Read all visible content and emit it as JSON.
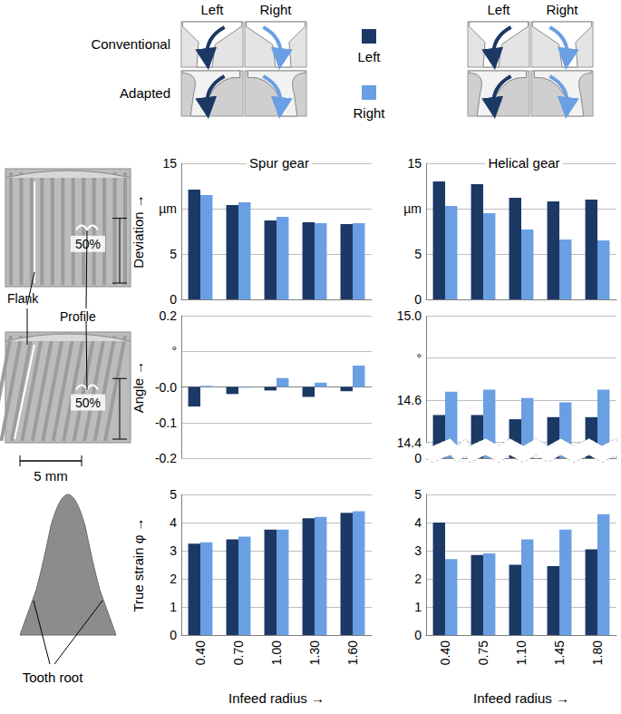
{
  "chart_data": [
    {
      "type": "bar",
      "title": "Spur gear",
      "ylabel": "Deviation →",
      "categories": [
        "0.40",
        "0.70",
        "1.00",
        "1.30",
        "1.60"
      ],
      "series": [
        {
          "name": "Left",
          "color": "#1c3865",
          "values": [
            12.1,
            10.4,
            8.7,
            8.5,
            8.3
          ]
        },
        {
          "name": "Right",
          "color": "#6a9fe3",
          "values": [
            11.5,
            10.7,
            9.1,
            8.4,
            8.4
          ]
        }
      ],
      "ylim": [
        0,
        15
      ],
      "yticks": [
        0,
        5,
        {
          "value": 10,
          "label": "µm"
        },
        15
      ],
      "grid": true,
      "tick_labels": "y"
    },
    {
      "type": "bar",
      "title": "Helical gear",
      "categories": [
        "0.40",
        "0.75",
        "1.10",
        "1.45",
        "1.80"
      ],
      "series": [
        {
          "name": "Left",
          "color": "#1c3865",
          "values": [
            13.0,
            12.7,
            11.2,
            10.8,
            11.0
          ]
        },
        {
          "name": "Right",
          "color": "#6a9fe3",
          "values": [
            10.3,
            9.5,
            7.7,
            6.6,
            6.5
          ]
        }
      ],
      "ylim": [
        0,
        15
      ],
      "yticks": [
        0,
        5,
        {
          "value": 10,
          "label": "µm"
        },
        15
      ],
      "grid": true,
      "tick_labels": "y"
    },
    {
      "type": "bar",
      "ylabel": "Angle →",
      "categories": [
        "0.40",
        "0.70",
        "1.00",
        "1.30",
        "1.60"
      ],
      "series": [
        {
          "name": "Left",
          "color": "#1c3865",
          "values": [
            -0.055,
            -0.02,
            -0.01,
            -0.028,
            -0.012
          ]
        },
        {
          "name": "Right",
          "color": "#6a9fe3",
          "values": [
            0.003,
            -0.002,
            0.025,
            0.012,
            0.06
          ]
        }
      ],
      "ylim": [
        -0.2,
        0.2
      ],
      "yticks": [
        -0.2,
        -0.1,
        {
          "value": 0,
          "label": "-0.0"
        },
        {
          "value": 0.1,
          "label": "°"
        },
        0.2
      ],
      "grid": true,
      "tick_labels": "y"
    },
    {
      "type": "bar",
      "categories": [
        "0.40",
        "0.75",
        "1.10",
        "1.45",
        "1.80"
      ],
      "series": [
        {
          "name": "Left",
          "color": "#1c3865",
          "values": [
            14.53,
            14.53,
            14.51,
            14.52,
            14.52
          ]
        },
        {
          "name": "Right",
          "color": "#6a9fe3",
          "values": [
            14.64,
            14.65,
            14.61,
            14.59,
            14.65
          ]
        }
      ],
      "ylim": [
        0,
        15
      ],
      "yticks": [
        0,
        14.4,
        14.6,
        {
          "value": 14.8,
          "label": "°"
        },
        {
          "value": 15,
          "label": "15.0"
        }
      ],
      "grid": true,
      "tick_labels": "y"
    },
    {
      "type": "bar",
      "ylabel": "True strain φ →",
      "xlabel": "Infeed radius →",
      "categories": [
        "0.40",
        "0.70",
        "1.00",
        "1.30",
        "1.60"
      ],
      "series": [
        {
          "name": "Left",
          "color": "#1c3865",
          "values": [
            3.25,
            3.4,
            3.75,
            4.15,
            4.35
          ]
        },
        {
          "name": "Right",
          "color": "#6a9fe3",
          "values": [
            3.3,
            3.5,
            3.75,
            4.2,
            4.4
          ]
        }
      ],
      "ylim": [
        0,
        5
      ],
      "yticks": [
        0,
        1,
        2,
        3,
        4,
        5
      ],
      "grid": true
    },
    {
      "type": "bar",
      "xlabel": "Infeed radius →",
      "categories": [
        "0.40",
        "0.75",
        "1.10",
        "1.45",
        "1.80"
      ],
      "series": [
        {
          "name": "Left",
          "color": "#1c3865",
          "values": [
            4.0,
            2.85,
            2.5,
            2.45,
            3.05
          ]
        },
        {
          "name": "Right",
          "color": "#6a9fe3",
          "values": [
            2.7,
            2.9,
            3.4,
            3.75,
            4.3
          ]
        }
      ],
      "ylim": [
        0,
        5
      ],
      "yticks": [
        0,
        1,
        2,
        3,
        4,
        5
      ],
      "grid": true
    }
  ],
  "figure": {
    "header": [
      "Left",
      "Right"
    ],
    "row_labels": [
      "Conventional",
      "Adapted"
    ],
    "gear_labels": {
      "flank": "Flank",
      "profile": "Profile",
      "height": "50%",
      "scale": "5 mm",
      "root": "Tooth root"
    }
  }
}
